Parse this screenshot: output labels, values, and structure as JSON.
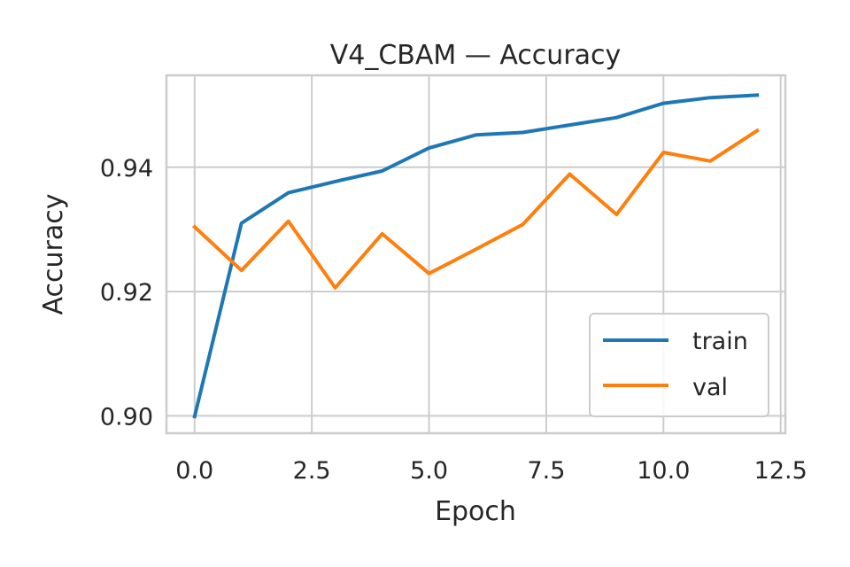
{
  "chart_data": {
    "type": "line",
    "title": "V4_CBAM — Accuracy",
    "xlabel": "Epoch",
    "ylabel": "Accuracy",
    "xlim": [
      -0.6,
      12.6
    ],
    "ylim": [
      0.8972,
      0.9548
    ],
    "xticks": [
      0.0,
      2.5,
      5.0,
      7.5,
      10.0,
      12.5
    ],
    "xtick_labels": [
      "0.0",
      "2.5",
      "5.0",
      "7.5",
      "10.0",
      "12.5"
    ],
    "yticks": [
      0.9,
      0.92,
      0.94
    ],
    "ytick_labels": [
      "0.90",
      "0.92",
      "0.94"
    ],
    "grid": true,
    "legend_position": "lower right",
    "x": [
      0,
      1,
      2,
      3,
      4,
      5,
      6,
      7,
      8,
      9,
      10,
      11,
      12
    ],
    "series": [
      {
        "name": "train",
        "color": "#1f77b4",
        "values": [
          0.8999,
          0.931,
          0.9359,
          0.9377,
          0.9394,
          0.9431,
          0.9452,
          0.9456,
          0.9468,
          0.948,
          0.9503,
          0.9512,
          0.9516
        ]
      },
      {
        "name": "val",
        "color": "#ff7f0e",
        "values": [
          0.9304,
          0.9234,
          0.9313,
          0.9206,
          0.9293,
          0.9229,
          0.9268,
          0.9308,
          0.9389,
          0.9324,
          0.9424,
          0.941,
          0.9459
        ]
      }
    ]
  }
}
